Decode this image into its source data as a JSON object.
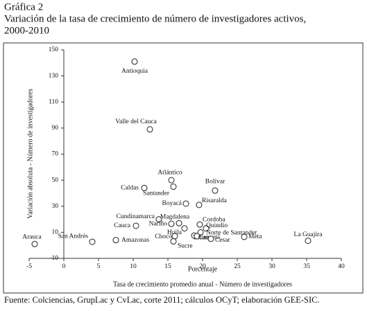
{
  "chart_data": {
    "type": "scatter",
    "title": "Gráfica 2",
    "subtitle_lines": [
      "Variación de la tasa de crecimiento de número de investigadores activos,",
      "2000-2010"
    ],
    "xlabel": "Porcentaje",
    "xlabel2": "Tasa de crecimiento promedio anual - Número de investigadores",
    "ylabel": "Variación absoluta - Número de investigadores",
    "source": "Fuente: Colciencias, GrupLac y CvLac, corte 2011; cálculos OCyT; elaboración GEE-SIC.",
    "xlim": [
      -5,
      40
    ],
    "xticks": [
      -5,
      0,
      5,
      10,
      15,
      20,
      25,
      30,
      35,
      40
    ],
    "ylim": [
      -10,
      150
    ],
    "yticks": [
      -10,
      10,
      30,
      50,
      70,
      90,
      110,
      130,
      150
    ],
    "color": "#ffffff",
    "labels": [
      "Antioquia",
      "Valle del Cauca",
      "Atlántico",
      "Caldas",
      "Santander",
      "Bolívar",
      "Boyacá",
      "Risaralda",
      "Cundinamarca",
      "Magdalena",
      "Cordoba",
      "Quindío",
      "Norte de Santander",
      "Cauca",
      "Nariño",
      "Huila",
      "Tolima",
      "Caquetá",
      "Chocó",
      "Sucre",
      "Cesar",
      "Meta",
      "Amazonas",
      "San Andrés",
      "Arauca",
      "La Guajira"
    ],
    "x": [
      10.2,
      12.4,
      15.5,
      11.6,
      15.8,
      21.8,
      17.6,
      19.5,
      13.7,
      16.6,
      19.6,
      20.5,
      19.7,
      10.4,
      15.5,
      17.4,
      18.8,
      19.2,
      16,
      15.8,
      21.2,
      26,
      7.5,
      4.1,
      -4.2,
      35.2
    ],
    "values": [
      141,
      89,
      50,
      44,
      45,
      42,
      32,
      31,
      20,
      17,
      16,
      13,
      10,
      15,
      16.5,
      13,
      7.5,
      7,
      7,
      3,
      5,
      6.5,
      4,
      2.7,
      1,
      3.5
    ]
  }
}
